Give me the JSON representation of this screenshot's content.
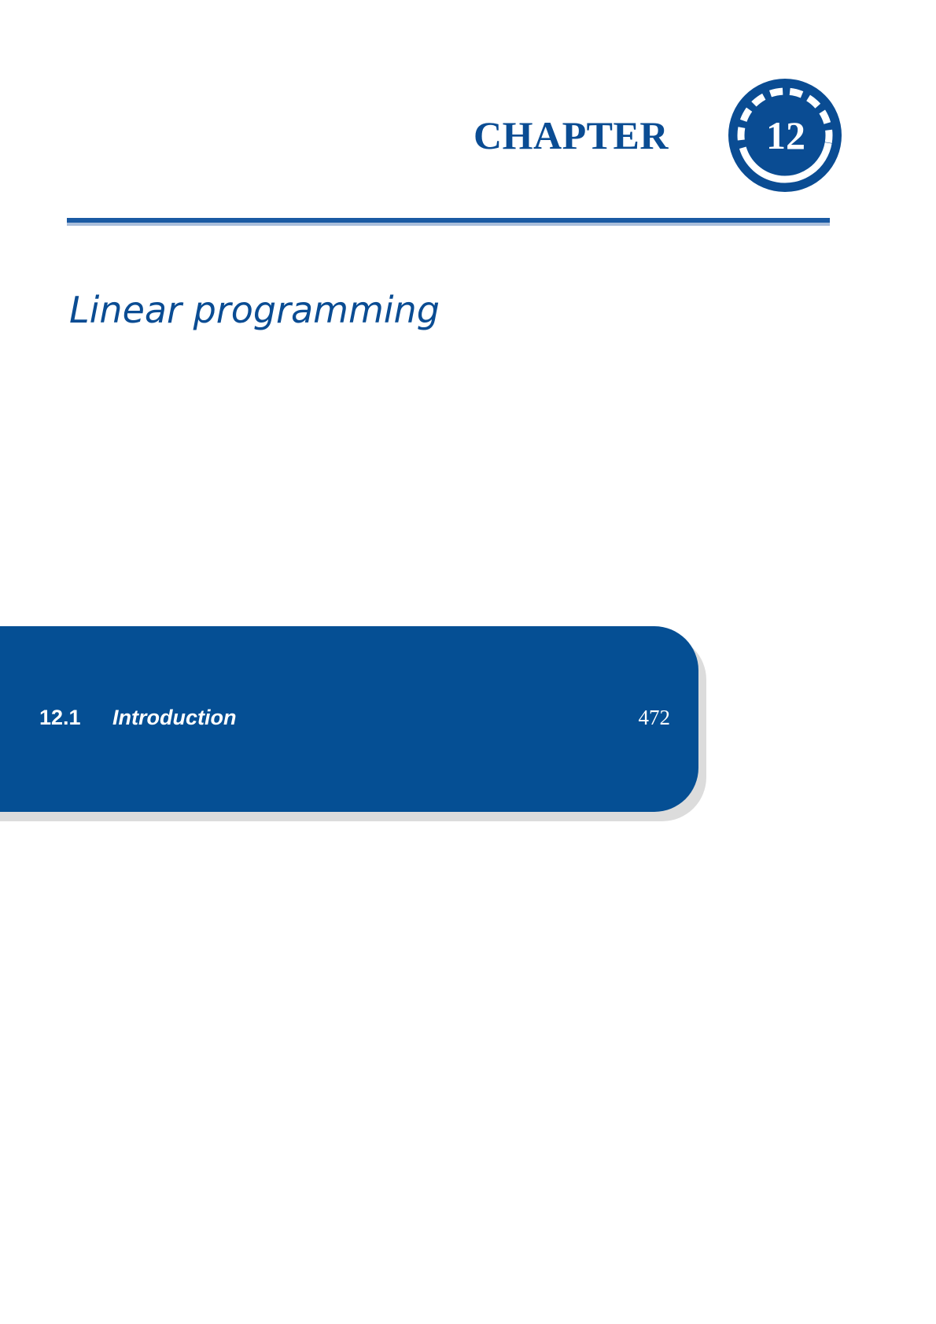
{
  "header": {
    "chapter_label": "CHAPTER",
    "chapter_number": "12"
  },
  "chapter_title": "Linear programming",
  "contents": {
    "items": [
      {
        "number": "12.1",
        "title": "Introduction",
        "page": "472"
      }
    ]
  },
  "colors": {
    "primary_blue": "#0a4c93",
    "panel_blue": "#054f94",
    "panel_shadow": "#dcdcdc",
    "text_on_panel": "#ffffff"
  }
}
